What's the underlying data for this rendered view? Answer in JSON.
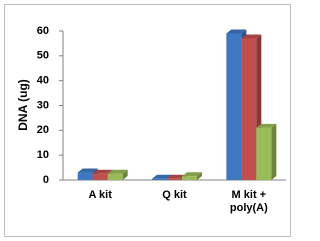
{
  "chart_data": {
    "type": "bar3d",
    "y_label": "DNA (ug)",
    "categories": [
      "A kit",
      "Q kit",
      "M kit + poly(A)"
    ],
    "series": [
      {
        "color": "#3f78c0",
        "values": [
          3,
          0.5,
          59
        ]
      },
      {
        "color": "#c0504d",
        "values": [
          2.5,
          0.5,
          57
        ]
      },
      {
        "color": "#9bbb59",
        "values": [
          2.5,
          1.5,
          21
        ]
      }
    ],
    "ylim": [
      0,
      60
    ],
    "yticks": [
      0,
      10,
      20,
      30,
      40,
      50,
      60
    ],
    "grid": false
  }
}
